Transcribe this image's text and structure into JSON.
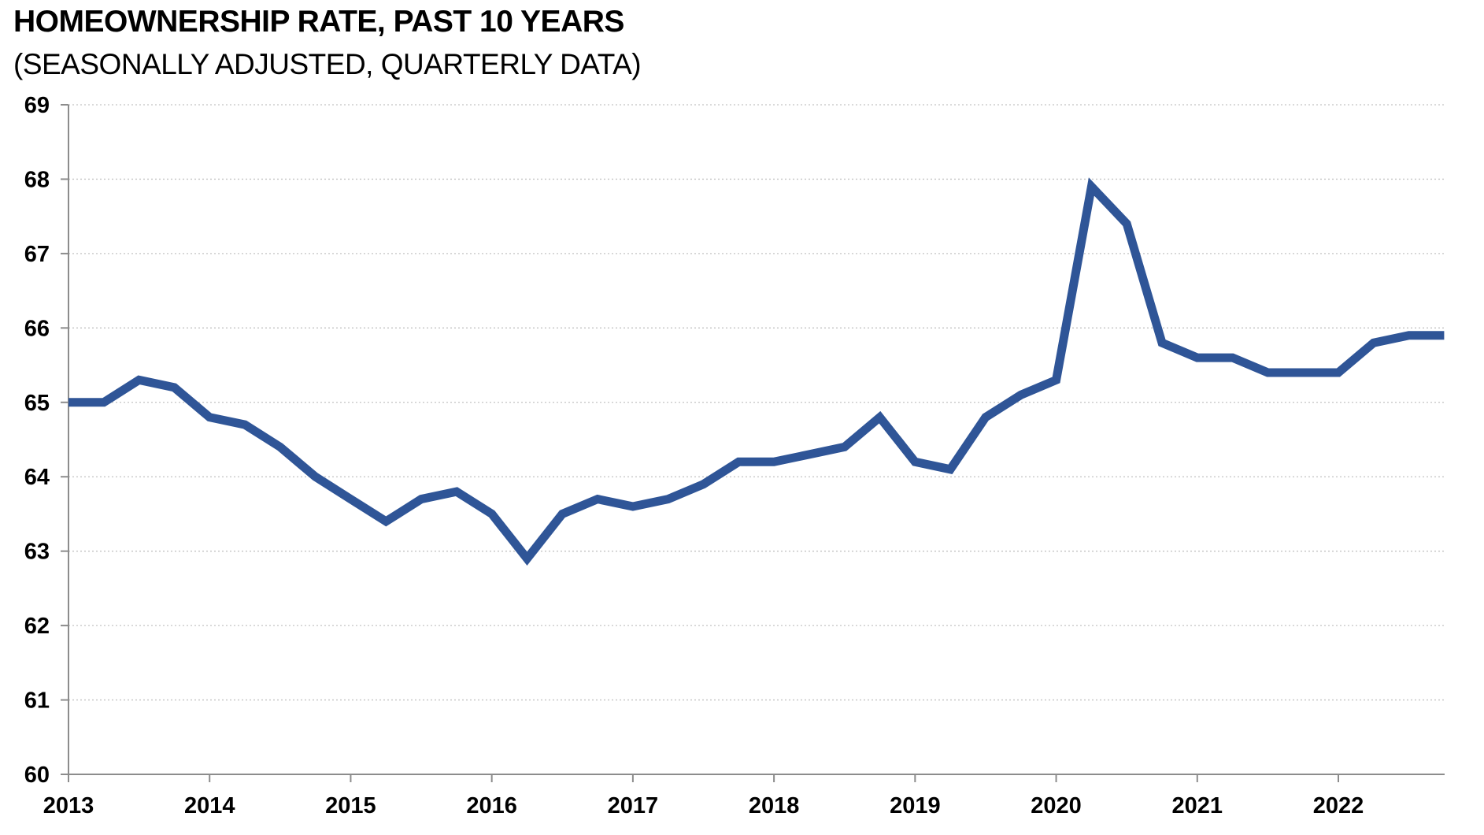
{
  "header": {
    "title": "HOMEOWNERSHIP RATE, PAST 10 YEARS",
    "subtitle": "(SEASONALLY ADJUSTED, QUARTERLY DATA)"
  },
  "chart_data": {
    "type": "line",
    "title": "HOMEOWNERSHIP RATE, PAST 10 YEARS",
    "subtitle": "(SEASONALLY ADJUSTED, QUARTERLY DATA)",
    "series_name": "Homeownership rate",
    "x_labels": [
      "2013 Q1",
      "2013 Q2",
      "2013 Q3",
      "2013 Q4",
      "2014 Q1",
      "2014 Q2",
      "2014 Q3",
      "2014 Q4",
      "2015 Q1",
      "2015 Q2",
      "2015 Q3",
      "2015 Q4",
      "2016 Q1",
      "2016 Q2",
      "2016 Q3",
      "2016 Q4",
      "2017 Q1",
      "2017 Q2",
      "2017 Q3",
      "2017 Q4",
      "2018 Q1",
      "2018 Q2",
      "2018 Q3",
      "2018 Q4",
      "2019 Q1",
      "2019 Q2",
      "2019 Q3",
      "2019 Q4",
      "2020 Q1",
      "2020 Q2",
      "2020 Q3",
      "2020 Q4",
      "2021 Q1",
      "2021 Q2",
      "2021 Q3",
      "2021 Q4",
      "2022 Q1",
      "2022 Q2",
      "2022 Q3",
      "2022 Q4"
    ],
    "values": [
      65.0,
      65.0,
      65.3,
      65.2,
      64.8,
      64.7,
      64.4,
      64.0,
      63.7,
      63.4,
      63.7,
      63.8,
      63.5,
      62.9,
      63.5,
      63.7,
      63.6,
      63.7,
      63.9,
      64.2,
      64.2,
      64.3,
      64.4,
      64.8,
      64.2,
      64.1,
      64.8,
      65.1,
      65.3,
      67.9,
      67.4,
      65.8,
      65.6,
      65.6,
      65.4,
      65.4,
      65.4,
      65.8,
      65.9,
      65.9
    ],
    "x_tick_labels": [
      "2013",
      "2014",
      "2015",
      "2016",
      "2017",
      "2018",
      "2019",
      "2020",
      "2021",
      "2022"
    ],
    "y_tick_labels": [
      "60",
      "61",
      "62",
      "63",
      "64",
      "65",
      "66",
      "67",
      "68",
      "69"
    ],
    "ylim": [
      60,
      69
    ],
    "y_tick_step": 1,
    "grid": "horizontal-dotted",
    "legend": "none",
    "colors": {
      "line": "#2F5597",
      "grid": "#C3C3C3",
      "axis": "#8C8C8C",
      "text": "#000000",
      "background": "#FFFFFF"
    }
  }
}
